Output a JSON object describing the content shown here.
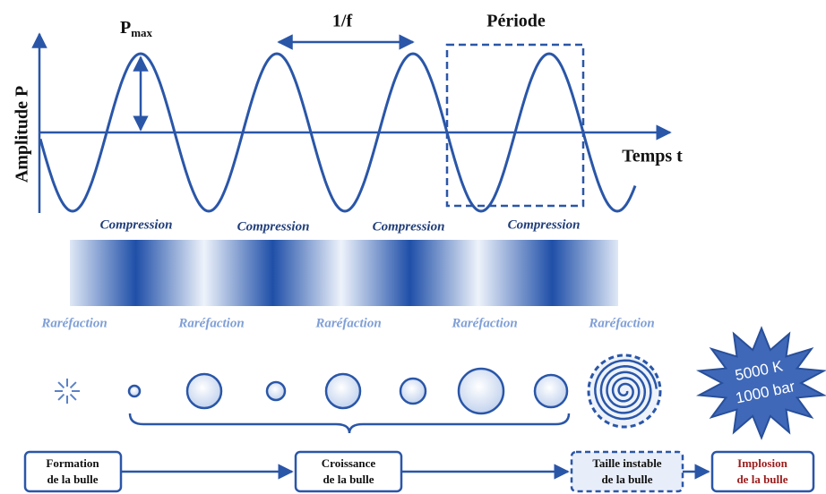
{
  "axes": {
    "y_label": "Amplitude P",
    "x_label": "Temps t"
  },
  "annotations": {
    "pmax": {
      "base": "P",
      "sub": "max"
    },
    "frequency": "1/f",
    "period": "Période"
  },
  "compression_labels": [
    "Compression",
    "Compression",
    "Compression",
    "Compression"
  ],
  "rarefaction_labels": [
    "Raréfaction",
    "Raréfaction",
    "Raréfaction",
    "Raréfaction",
    "Raréfaction"
  ],
  "hot_spot": [
    "5000 K",
    "1000 bar"
  ],
  "stages": [
    {
      "lines": [
        "Formation",
        "de la bulle"
      ]
    },
    {
      "lines": [
        "Croissance",
        "de la bulle"
      ]
    },
    {
      "lines": [
        "Taille instable",
        "de la bulle"
      ]
    },
    {
      "lines": [
        "Implosion",
        "de la bulle"
      ]
    }
  ]
}
